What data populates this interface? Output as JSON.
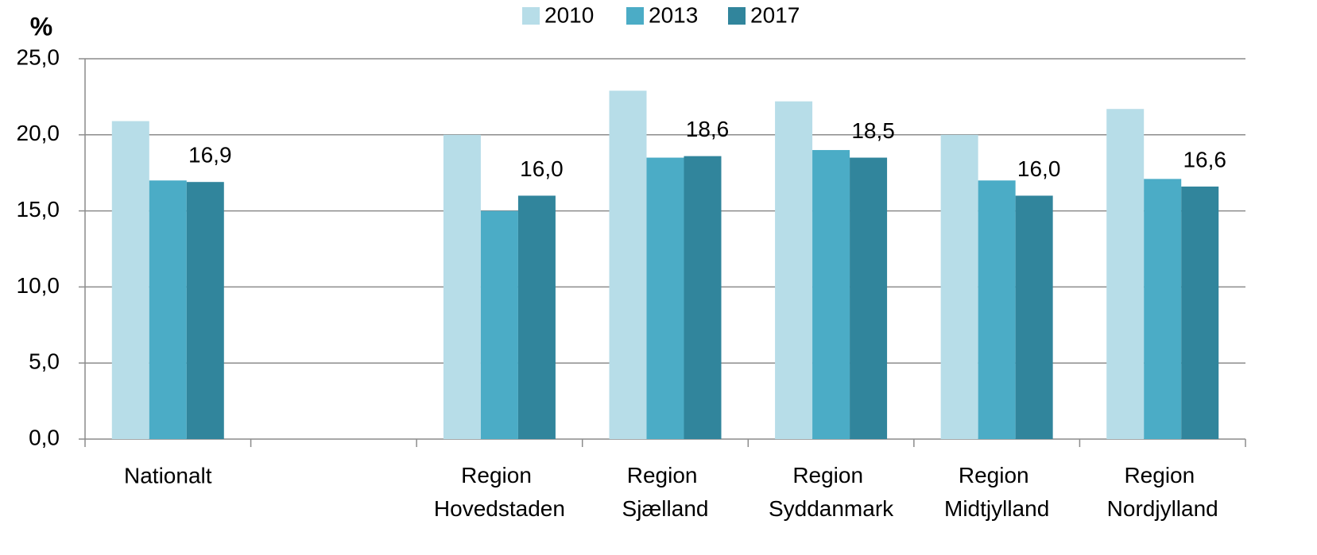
{
  "chart_data": {
    "type": "bar",
    "y_unit_label": "%",
    "categories": [
      "Nationalt",
      null,
      "Region Hovedstaden",
      "Region Sjælland",
      "Region Syddanmark",
      "Region Midtjylland",
      "Region Nordjylland"
    ],
    "series": [
      {
        "name": "2010",
        "color": "#b7dde8",
        "values": [
          20.9,
          null,
          20.0,
          22.9,
          22.2,
          20.0,
          21.7
        ]
      },
      {
        "name": "2013",
        "color": "#4bacc6",
        "values": [
          17.0,
          null,
          15.0,
          18.5,
          19.0,
          17.0,
          17.1
        ]
      },
      {
        "name": "2017",
        "color": "#31859c",
        "values": [
          16.9,
          null,
          16.0,
          18.6,
          18.5,
          16.0,
          16.6
        ],
        "value_labels": [
          "16,9",
          null,
          "16,0",
          "18,6",
          "18,5",
          "16,0",
          "16,6"
        ]
      }
    ],
    "ylim": [
      0,
      25
    ],
    "yticks": [
      {
        "value": 0,
        "label": "0,0"
      },
      {
        "value": 5,
        "label": "5,0"
      },
      {
        "value": 10,
        "label": "10,0"
      },
      {
        "value": 15,
        "label": "15,0"
      },
      {
        "value": 20,
        "label": "20,0"
      },
      {
        "value": 25,
        "label": "25,0"
      }
    ],
    "grid": true,
    "legend": "top"
  }
}
